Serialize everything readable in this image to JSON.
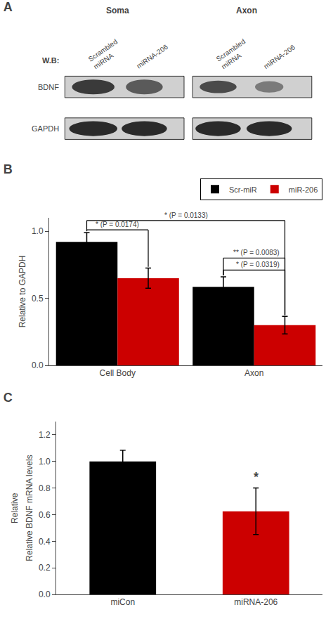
{
  "chart_data": [
    {
      "type": "blot",
      "title": "A",
      "categories": [
        "Scrambled\nmiRNA",
        "miRNA-206",
        "Scrambled\nmiRNA",
        "miRNA-206"
      ],
      "annotations": [
        "Soma",
        "Axon",
        "W.B:",
        "BDNF",
        "GAPDH"
      ]
    },
    {
      "type": "bar",
      "title": "B",
      "categories": [
        "Cell Body",
        "Axon"
      ],
      "series": [
        {
          "name": "Scr-miR",
          "color": "#000000",
          "values": [
            0.92,
            0.585
          ],
          "errors": [
            0.07,
            0.075
          ]
        },
        {
          "name": "miR-206",
          "color": "#cc0000",
          "values": [
            0.65,
            0.3
          ],
          "errors": [
            0.075,
            0.065
          ]
        }
      ],
      "ylabel": "Relative to GAPDH",
      "ylim": [
        0.0,
        1.1
      ],
      "yticks": [
        {
          "value": 0,
          "label": "0.0"
        },
        0.5,
        {
          "value": 1,
          "label": "1.0"
        }
      ],
      "grid": false,
      "legend": "upper right",
      "annotations": [
        "* (P = 0.0174)",
        "* (P = 0.0133)",
        "** (P = 0.0083)",
        "* (P = 0.0319)"
      ]
    },
    {
      "type": "bar",
      "title": "C",
      "categories": [
        "miCon",
        "miRNA-206"
      ],
      "values": [
        1.0,
        0.625
      ],
      "errors": [
        0.085,
        0.175
      ],
      "colors": [
        "#000000",
        "#cc0000"
      ],
      "ylabel": "Relative BDNF mRNA levels",
      "ylim": [
        0.0,
        1.3
      ],
      "yticks": [
        {
          "value": 0,
          "label": "0.0"
        },
        0.2,
        0.4,
        0.6,
        0.8,
        {
          "value": 1,
          "label": "1.0"
        },
        1.2
      ],
      "grid": false,
      "annotations": [
        "*",
        "Relative"
      ]
    }
  ]
}
